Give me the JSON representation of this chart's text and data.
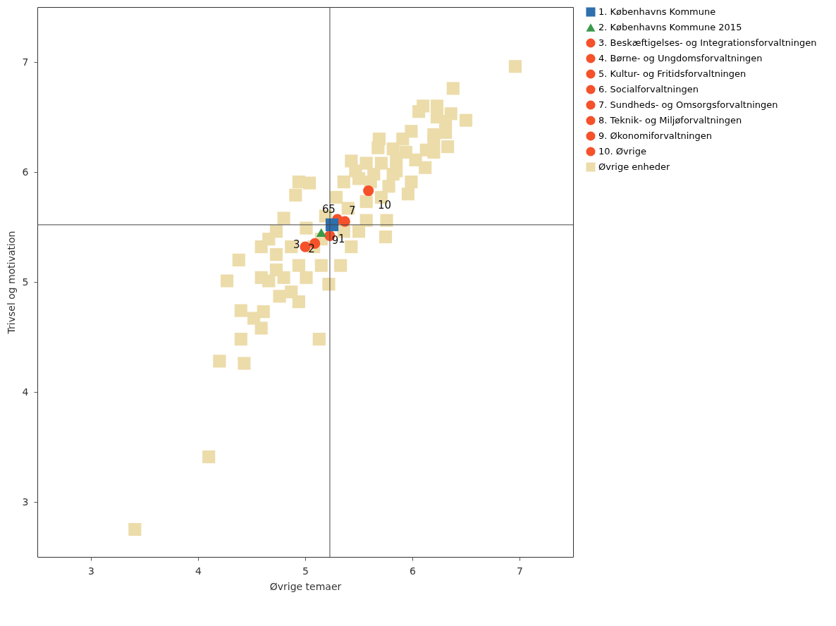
{
  "chart_data": {
    "type": "scatter",
    "xlabel": "Øvrige temaer",
    "ylabel": "Trivsel og motivation",
    "xlim": [
      2.5,
      7.5
    ],
    "ylim": [
      2.5,
      7.5
    ],
    "xticks": [
      3,
      4,
      5,
      6,
      7
    ],
    "yticks": [
      3,
      4,
      5,
      6,
      7
    ],
    "grid": false,
    "legend": "right",
    "ref_lines": [
      {
        "axis": "x",
        "value": 5.23,
        "color": "#444444"
      },
      {
        "axis": "y",
        "value": 5.52,
        "color": "#444444"
      }
    ],
    "annotations": [
      {
        "text": "1",
        "x": 5.34,
        "y": 5.39
      },
      {
        "text": "2",
        "x": 5.06,
        "y": 5.3
      },
      {
        "text": "3",
        "x": 4.92,
        "y": 5.34
      },
      {
        "text": "5",
        "x": 5.25,
        "y": 5.66
      },
      {
        "text": "6",
        "x": 5.19,
        "y": 5.66
      },
      {
        "text": "7",
        "x": 5.44,
        "y": 5.65
      },
      {
        "text": "9",
        "x": 5.28,
        "y": 5.38
      },
      {
        "text": "10",
        "x": 5.74,
        "y": 5.7
      }
    ],
    "series": [
      {
        "name": "1. Københavns Kommune",
        "color": "#2e6fad",
        "marker": "square",
        "x": [
          5.25
        ],
        "values": [
          5.52
        ]
      },
      {
        "name": "2. Københavns Kommune 2015",
        "color": "#3a9a4a",
        "marker": "triangle",
        "x": [
          5.15
        ],
        "values": [
          5.45
        ]
      },
      {
        "name": "3. Beskæftigelses- og Integrationsforvaltningen",
        "color": "#f5512a",
        "marker": "circle",
        "x": [
          5.0
        ],
        "values": [
          5.32
        ]
      },
      {
        "name": "4. Børne- og Ungdomsforvaltningen",
        "color": "#f5512a",
        "marker": "circle",
        "x": [
          5.09
        ],
        "values": [
          5.35
        ]
      },
      {
        "name": "5. Kultur- og Fritidsforvaltningen",
        "color": "#f5512a",
        "marker": "circle",
        "x": [
          5.3
        ],
        "values": [
          5.57
        ]
      },
      {
        "name": "6. Socialforvaltningen",
        "color": "#f5512a",
        "marker": "circle",
        "x": [
          null
        ],
        "values": [
          null
        ]
      },
      {
        "name": "7. Sundheds- og Omsorgsforvaltningen",
        "color": "#f5512a",
        "marker": "circle",
        "x": [
          5.37
        ],
        "values": [
          5.55
        ]
      },
      {
        "name": "8. Teknik- og Miljøforvaltningen",
        "color": "#f5512a",
        "marker": "circle",
        "x": [
          null
        ],
        "values": [
          null
        ]
      },
      {
        "name": "9. Økonomiforvaltningen",
        "color": "#f5512a",
        "marker": "circle",
        "x": [
          5.23
        ],
        "values": [
          5.42
        ]
      },
      {
        "name": "10. Øvrige",
        "color": "#f5512a",
        "marker": "circle",
        "x": [
          5.59
        ],
        "values": [
          5.83
        ]
      },
      {
        "name": "Øvrige enheder",
        "color": "#ecdcaa",
        "marker": "square",
        "x": [
          6.96,
          6.38,
          6.1,
          6.23,
          6.06,
          6.23,
          6.36,
          6.5,
          5.99,
          6.31,
          5.91,
          6.2,
          6.33,
          5.69,
          6.13,
          5.94,
          6.12,
          5.85,
          5.68,
          5.57,
          5.43,
          5.82,
          5.96,
          5.99,
          5.78,
          5.5,
          5.36,
          5.29,
          5.04,
          4.91,
          4.94,
          4.8,
          5.76,
          5.75,
          5.57,
          5.5,
          5.43,
          5.33,
          5.22,
          5.15,
          4.94,
          4.94,
          4.76,
          4.66,
          4.59,
          4.73,
          4.66,
          4.73,
          4.87,
          4.38,
          4.27,
          4.4,
          4.52,
          4.59,
          4.61,
          4.4,
          4.2,
          4.43,
          5.13,
          4.1,
          3.41,
          5.15,
          5.01,
          5.19,
          5.4,
          5.57,
          5.71,
          5.64,
          5.71,
          5.85,
          6.03,
          6.2,
          4.73,
          4.59,
          4.8,
          5.01,
          4.87,
          5.08,
          5.36,
          5.61,
          5.47,
          6.31,
          6.2,
          5.82
        ],
        "values": [
          6.96,
          6.76,
          6.6,
          6.6,
          6.55,
          6.5,
          6.53,
          6.47,
          6.37,
          6.36,
          6.3,
          6.29,
          6.23,
          6.3,
          6.2,
          6.18,
          6.04,
          6.11,
          6.22,
          6.08,
          6.1,
          5.98,
          5.8,
          5.91,
          5.87,
          5.94,
          5.91,
          5.77,
          5.9,
          5.79,
          5.91,
          5.58,
          5.56,
          5.41,
          5.56,
          5.46,
          5.32,
          5.15,
          4.98,
          5.15,
          5.15,
          4.82,
          4.87,
          5.01,
          5.04,
          5.11,
          5.39,
          5.25,
          5.32,
          5.2,
          5.01,
          4.74,
          4.67,
          4.58,
          4.73,
          4.48,
          4.28,
          4.26,
          4.48,
          3.41,
          2.75,
          5.39,
          5.49,
          5.6,
          5.67,
          5.73,
          5.77,
          5.98,
          6.08,
          6.01,
          6.11,
          6.18,
          5.46,
          5.32,
          5.04,
          5.04,
          4.91,
          5.32,
          5.46,
          5.91,
          6.01,
          6.46,
          6.34,
          6.21
        ]
      }
    ]
  }
}
